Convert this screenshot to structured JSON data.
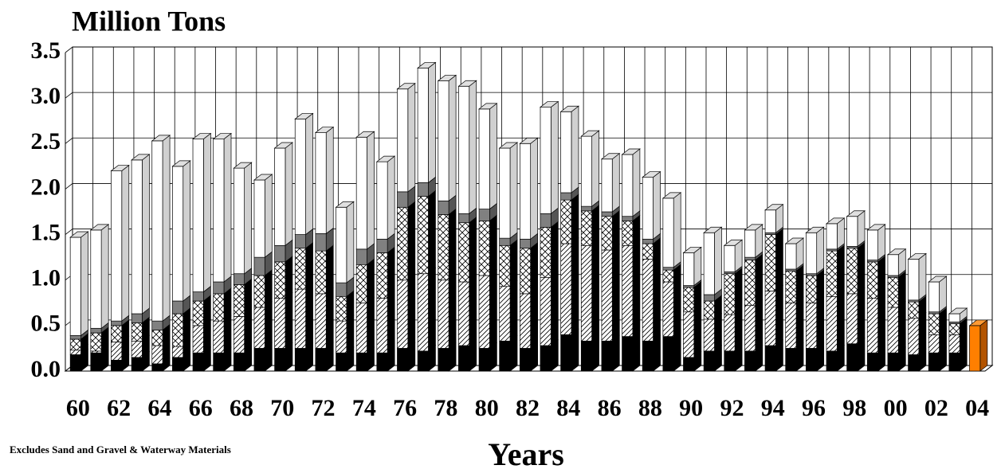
{
  "chart_data": {
    "type": "bar",
    "stacked": true,
    "three_d": true,
    "title": "Million Tons",
    "x_label": "Years",
    "annotation": "Excludes Sand and Gravel & Waterway Materials",
    "categories": [
      "60",
      null,
      "62",
      null,
      "64",
      null,
      "66",
      null,
      "68",
      null,
      "70",
      null,
      "72",
      null,
      "74",
      null,
      "76",
      null,
      "78",
      null,
      "80",
      null,
      "82",
      null,
      "84",
      null,
      "86",
      null,
      "88",
      null,
      "90",
      null,
      "92",
      null,
      "94",
      null,
      "96",
      null,
      "98",
      null,
      "00",
      null,
      "02",
      null,
      "04"
    ],
    "ylim": [
      0,
      3.5
    ],
    "yticks": [
      {
        "value": 0,
        "label": "0.0"
      },
      0.5,
      {
        "value": 1,
        "label": "1.0"
      },
      1.5,
      {
        "value": 2,
        "label": "2.0"
      },
      2.5,
      {
        "value": 3,
        "label": "3.0"
      },
      3.5
    ],
    "grid": true,
    "series": [
      {
        "color": "#000000",
        "pattern": "solid",
        "values": [
          0.18,
          0.2,
          0.12,
          0.15,
          0.08,
          0.15,
          0.2,
          0.2,
          0.2,
          0.25,
          0.25,
          0.25,
          0.25,
          0.2,
          0.2,
          0.2,
          0.25,
          0.22,
          0.25,
          0.28,
          0.25,
          0.33,
          0.25,
          0.28,
          0.4,
          0.33,
          0.33,
          0.38,
          0.33,
          0.38,
          0.15,
          0.22,
          0.22,
          0.22,
          0.28,
          0.25,
          0.25,
          0.22,
          0.3,
          0.2,
          0.2,
          0.18,
          0.2,
          0.2,
          null
        ]
      },
      {
        "color": "#000000",
        "pattern": "diagonal",
        "values": [
          0.05,
          0.02,
          0.2,
          0.18,
          0.2,
          0.12,
          0.3,
          0.35,
          0.4,
          0.45,
          0.55,
          0.65,
          0.6,
          0.35,
          0.55,
          0.6,
          0.75,
          0.85,
          0.75,
          0.7,
          0.8,
          0.6,
          0.6,
          0.75,
          1.0,
          1.05,
          1.0,
          1.0,
          0.9,
          0.6,
          0.5,
          0.35,
          0.4,
          0.5,
          0.6,
          0.5,
          0.5,
          0.6,
          0.55,
          0.6,
          0.5,
          0.4,
          0.2,
          0.2,
          null
        ]
      },
      {
        "color": "#000000",
        "pattern": "cross",
        "values": [
          0.12,
          0.2,
          0.18,
          0.2,
          0.17,
          0.36,
          0.27,
          0.3,
          0.35,
          0.35,
          0.4,
          0.45,
          0.47,
          0.27,
          0.42,
          0.5,
          0.8,
          0.85,
          0.72,
          0.65,
          0.6,
          0.45,
          0.5,
          0.55,
          0.48,
          0.38,
          0.37,
          0.27,
          0.17,
          0.13,
          0.27,
          0.2,
          0.45,
          0.5,
          0.62,
          0.35,
          0.3,
          0.5,
          0.5,
          0.4,
          0.33,
          0.18,
          0.23,
          0.12,
          null
        ]
      },
      {
        "color": "#808080",
        "pattern": "solid",
        "values": [
          0.04,
          0.05,
          0.05,
          0.1,
          0.1,
          0.14,
          0.1,
          0.13,
          0.12,
          0.2,
          0.18,
          0.15,
          0.19,
          0.15,
          0.17,
          0.15,
          0.17,
          0.15,
          0.15,
          0.1,
          0.13,
          0.08,
          0.1,
          0.15,
          0.08,
          0.05,
          0.05,
          0.05,
          0.05,
          0.03,
          0.02,
          0.07,
          0.02,
          0.03,
          0.02,
          0.02,
          0.02,
          0.02,
          0.02,
          0.02,
          0.02,
          0.02,
          0.02,
          0.02,
          null
        ]
      },
      {
        "color": "#ffffff",
        "pattern": "solid",
        "values": [
          1.08,
          1.08,
          1.65,
          1.69,
          1.98,
          1.48,
          1.68,
          1.57,
          1.16,
          0.85,
          1.07,
          1.27,
          1.11,
          0.83,
          1.23,
          0.85,
          1.13,
          1.26,
          1.32,
          1.4,
          1.1,
          0.99,
          1.05,
          1.17,
          0.89,
          0.77,
          0.58,
          0.68,
          0.68,
          0.76,
          0.36,
          0.68,
          0.29,
          0.3,
          0.25,
          0.28,
          0.45,
          0.28,
          0.33,
          0.33,
          0.23,
          0.45,
          0.33,
          0.09,
          null
        ]
      },
      {
        "color": "#ff7f00",
        "pattern": "solid",
        "values": [
          null,
          null,
          null,
          null,
          null,
          null,
          null,
          null,
          null,
          null,
          null,
          null,
          null,
          null,
          null,
          null,
          null,
          null,
          null,
          null,
          null,
          null,
          null,
          null,
          null,
          null,
          null,
          null,
          null,
          null,
          null,
          null,
          null,
          null,
          null,
          null,
          null,
          null,
          null,
          null,
          null,
          null,
          null,
          null,
          0.5
        ]
      }
    ]
  }
}
